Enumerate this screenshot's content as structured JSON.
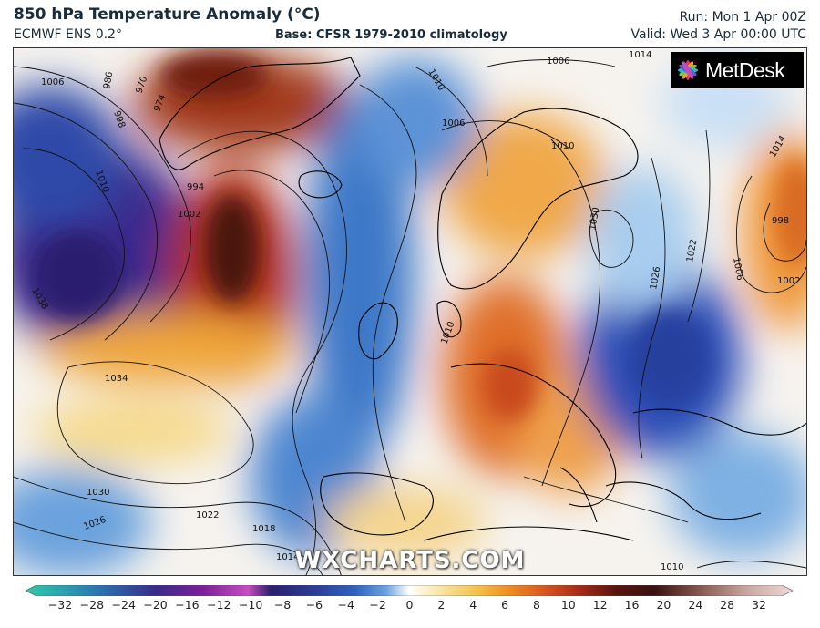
{
  "header": {
    "title": "850 hPa Temperature Anomaly (°C)",
    "model": "ECMWF ENS 0.2°",
    "base": "Base: CFSR 1979-2010 climatology",
    "run": "Run: Mon 1 Apr 00Z",
    "valid": "Valid: Wed 3 Apr 00:00 UTC"
  },
  "logo": {
    "text": "MetDesk",
    "icon": "metdesk-star-icon"
  },
  "watermark": "WXCHARTS.COM",
  "isobar_labels": [
    "1006",
    "986",
    "970",
    "974",
    "998",
    "1010",
    "994",
    "1002",
    "1038",
    "1034",
    "1030",
    "1026",
    "1022",
    "1018",
    "1014",
    "1010",
    "1006",
    "1006",
    "1014",
    "1010",
    "1010",
    "1030",
    "1026",
    "1022",
    "1014",
    "998",
    "1002",
    "1006",
    "1010"
  ],
  "colorbar": {
    "ticks": [
      "−32",
      "−28",
      "−24",
      "−20",
      "−16",
      "−12",
      "−10",
      "−8",
      "−6",
      "−4",
      "−2",
      "0",
      "2",
      "4",
      "6",
      "8",
      "10",
      "12",
      "16",
      "20",
      "24",
      "28",
      "32"
    ],
    "colors": [
      "#2fc9a6",
      "#2a7bb5",
      "#3a2a8a",
      "#5a1a8c",
      "#9a2aa8",
      "#c94cc0",
      "#2a1f6e",
      "#2e3e9a",
      "#2f63c2",
      "#4f8fd6",
      "#8ec0ea",
      "#ffffff",
      "#f7e6a3",
      "#f5c04b",
      "#ef8e22",
      "#d6521c",
      "#a82c16",
      "#6e1a10",
      "#4a1410",
      "#8a5a52",
      "#c9a7a0",
      "#e6d3d0"
    ]
  }
}
